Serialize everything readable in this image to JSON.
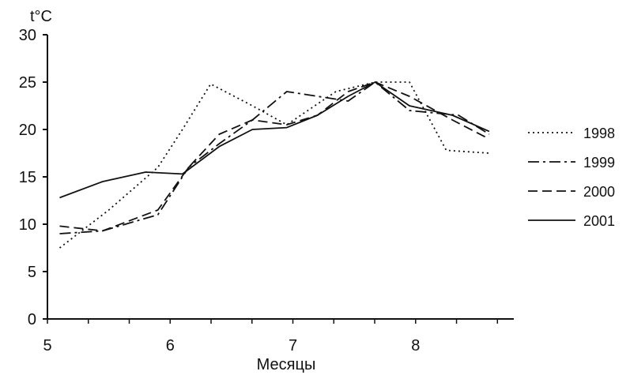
{
  "chart_data": {
    "type": "line",
    "title": "",
    "ylabel": "t°C",
    "xlabel": "Месяцы",
    "xlim": [
      5,
      8.8
    ],
    "ylim": [
      0,
      30
    ],
    "x_ticks": [
      5,
      6,
      7,
      8
    ],
    "x_tick_labels": [
      "5",
      "6",
      "7",
      "8"
    ],
    "y_ticks": [
      0,
      5,
      10,
      15,
      20,
      25,
      30
    ],
    "y_tick_labels": [
      "0",
      "5",
      "10",
      "15",
      "20",
      "25",
      "30"
    ],
    "grid": false,
    "legend": "right",
    "series": [
      {
        "name": "1998",
        "style": "dotted",
        "x": [
          5.1,
          5.5,
          5.9,
          6.1,
          6.33,
          6.67,
          6.95,
          7.35,
          7.67,
          7.95,
          8.25,
          8.6
        ],
        "y": [
          7.5,
          11.5,
          16.0,
          20.0,
          24.8,
          22.5,
          20.5,
          24.0,
          25.0,
          25.0,
          17.8,
          17.5
        ]
      },
      {
        "name": "1999",
        "style": "dash-dot",
        "x": [
          5.1,
          5.45,
          5.9,
          6.15,
          6.4,
          6.67,
          6.95,
          7.2,
          7.45,
          7.67,
          7.95,
          8.35,
          8.6
        ],
        "y": [
          9.0,
          9.3,
          11.0,
          16.0,
          18.5,
          21.0,
          24.0,
          23.5,
          23.0,
          25.0,
          22.0,
          21.5,
          19.5
        ]
      },
      {
        "name": "2000",
        "style": "dashed",
        "x": [
          5.1,
          5.45,
          5.9,
          6.15,
          6.4,
          6.67,
          6.95,
          7.2,
          7.45,
          7.67,
          7.95,
          8.3,
          8.6
        ],
        "y": [
          9.8,
          9.3,
          11.5,
          16.0,
          19.5,
          21.0,
          20.5,
          21.5,
          24.0,
          25.0,
          23.5,
          21.0,
          19.0
        ]
      },
      {
        "name": "2001",
        "style": "solid",
        "x": [
          5.1,
          5.45,
          5.8,
          6.1,
          6.4,
          6.67,
          6.95,
          7.2,
          7.45,
          7.67,
          7.95,
          8.3,
          8.6
        ],
        "y": [
          12.8,
          14.5,
          15.5,
          15.3,
          18.2,
          20.0,
          20.2,
          21.5,
          23.5,
          25.0,
          22.5,
          21.5,
          19.8
        ]
      }
    ]
  }
}
